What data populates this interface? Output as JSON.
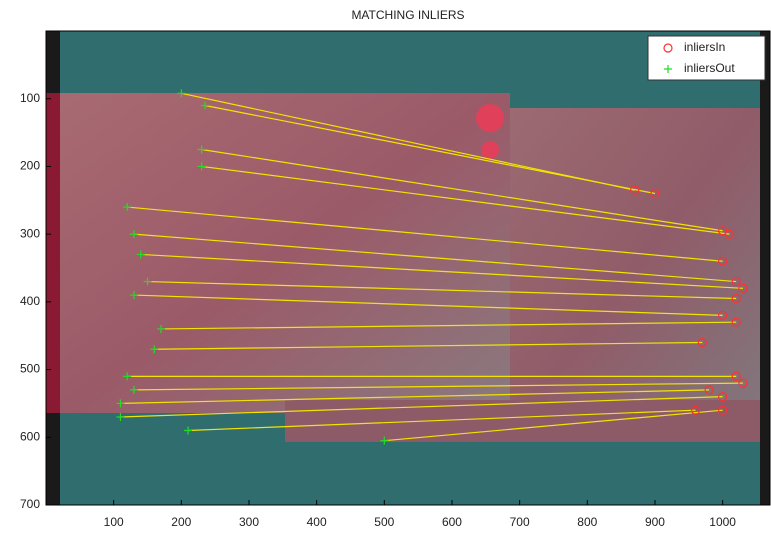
{
  "chart_data": {
    "type": "scatter",
    "title": "MATCHING INLIERS",
    "xlim": [
      0,
      1070
    ],
    "ylim": [
      0,
      700
    ],
    "y_reversed": true,
    "xticks": [
      100,
      200,
      300,
      400,
      500,
      600,
      700,
      800,
      900,
      1000
    ],
    "yticks": [
      100,
      200,
      300,
      400,
      500,
      600,
      700
    ],
    "legend": "upper right",
    "connect_pairs": true,
    "line_color": "#f2e400",
    "series": [
      {
        "name": "inliersIn",
        "color": "#ff3030",
        "marker": "circle",
        "x": [
          870,
          900,
          1000,
          1010,
          1000,
          1020,
          1030,
          1020,
          1000,
          1020,
          970,
          1020,
          1030,
          980,
          1000,
          960,
          1000
        ],
        "y": [
          235,
          240,
          295,
          300,
          340,
          370,
          380,
          395,
          420,
          430,
          460,
          510,
          520,
          530,
          540,
          560,
          560
        ]
      },
      {
        "name": "inliersOut",
        "color": "#22dd22",
        "marker": "plus",
        "x": [
          200,
          235,
          230,
          230,
          120,
          130,
          140,
          150,
          130,
          170,
          160,
          120,
          130,
          110,
          110,
          210,
          500
        ],
        "y": [
          92,
          110,
          175,
          200,
          260,
          300,
          330,
          370,
          390,
          440,
          470,
          510,
          530,
          550,
          570,
          590,
          605
        ]
      }
    ]
  }
}
